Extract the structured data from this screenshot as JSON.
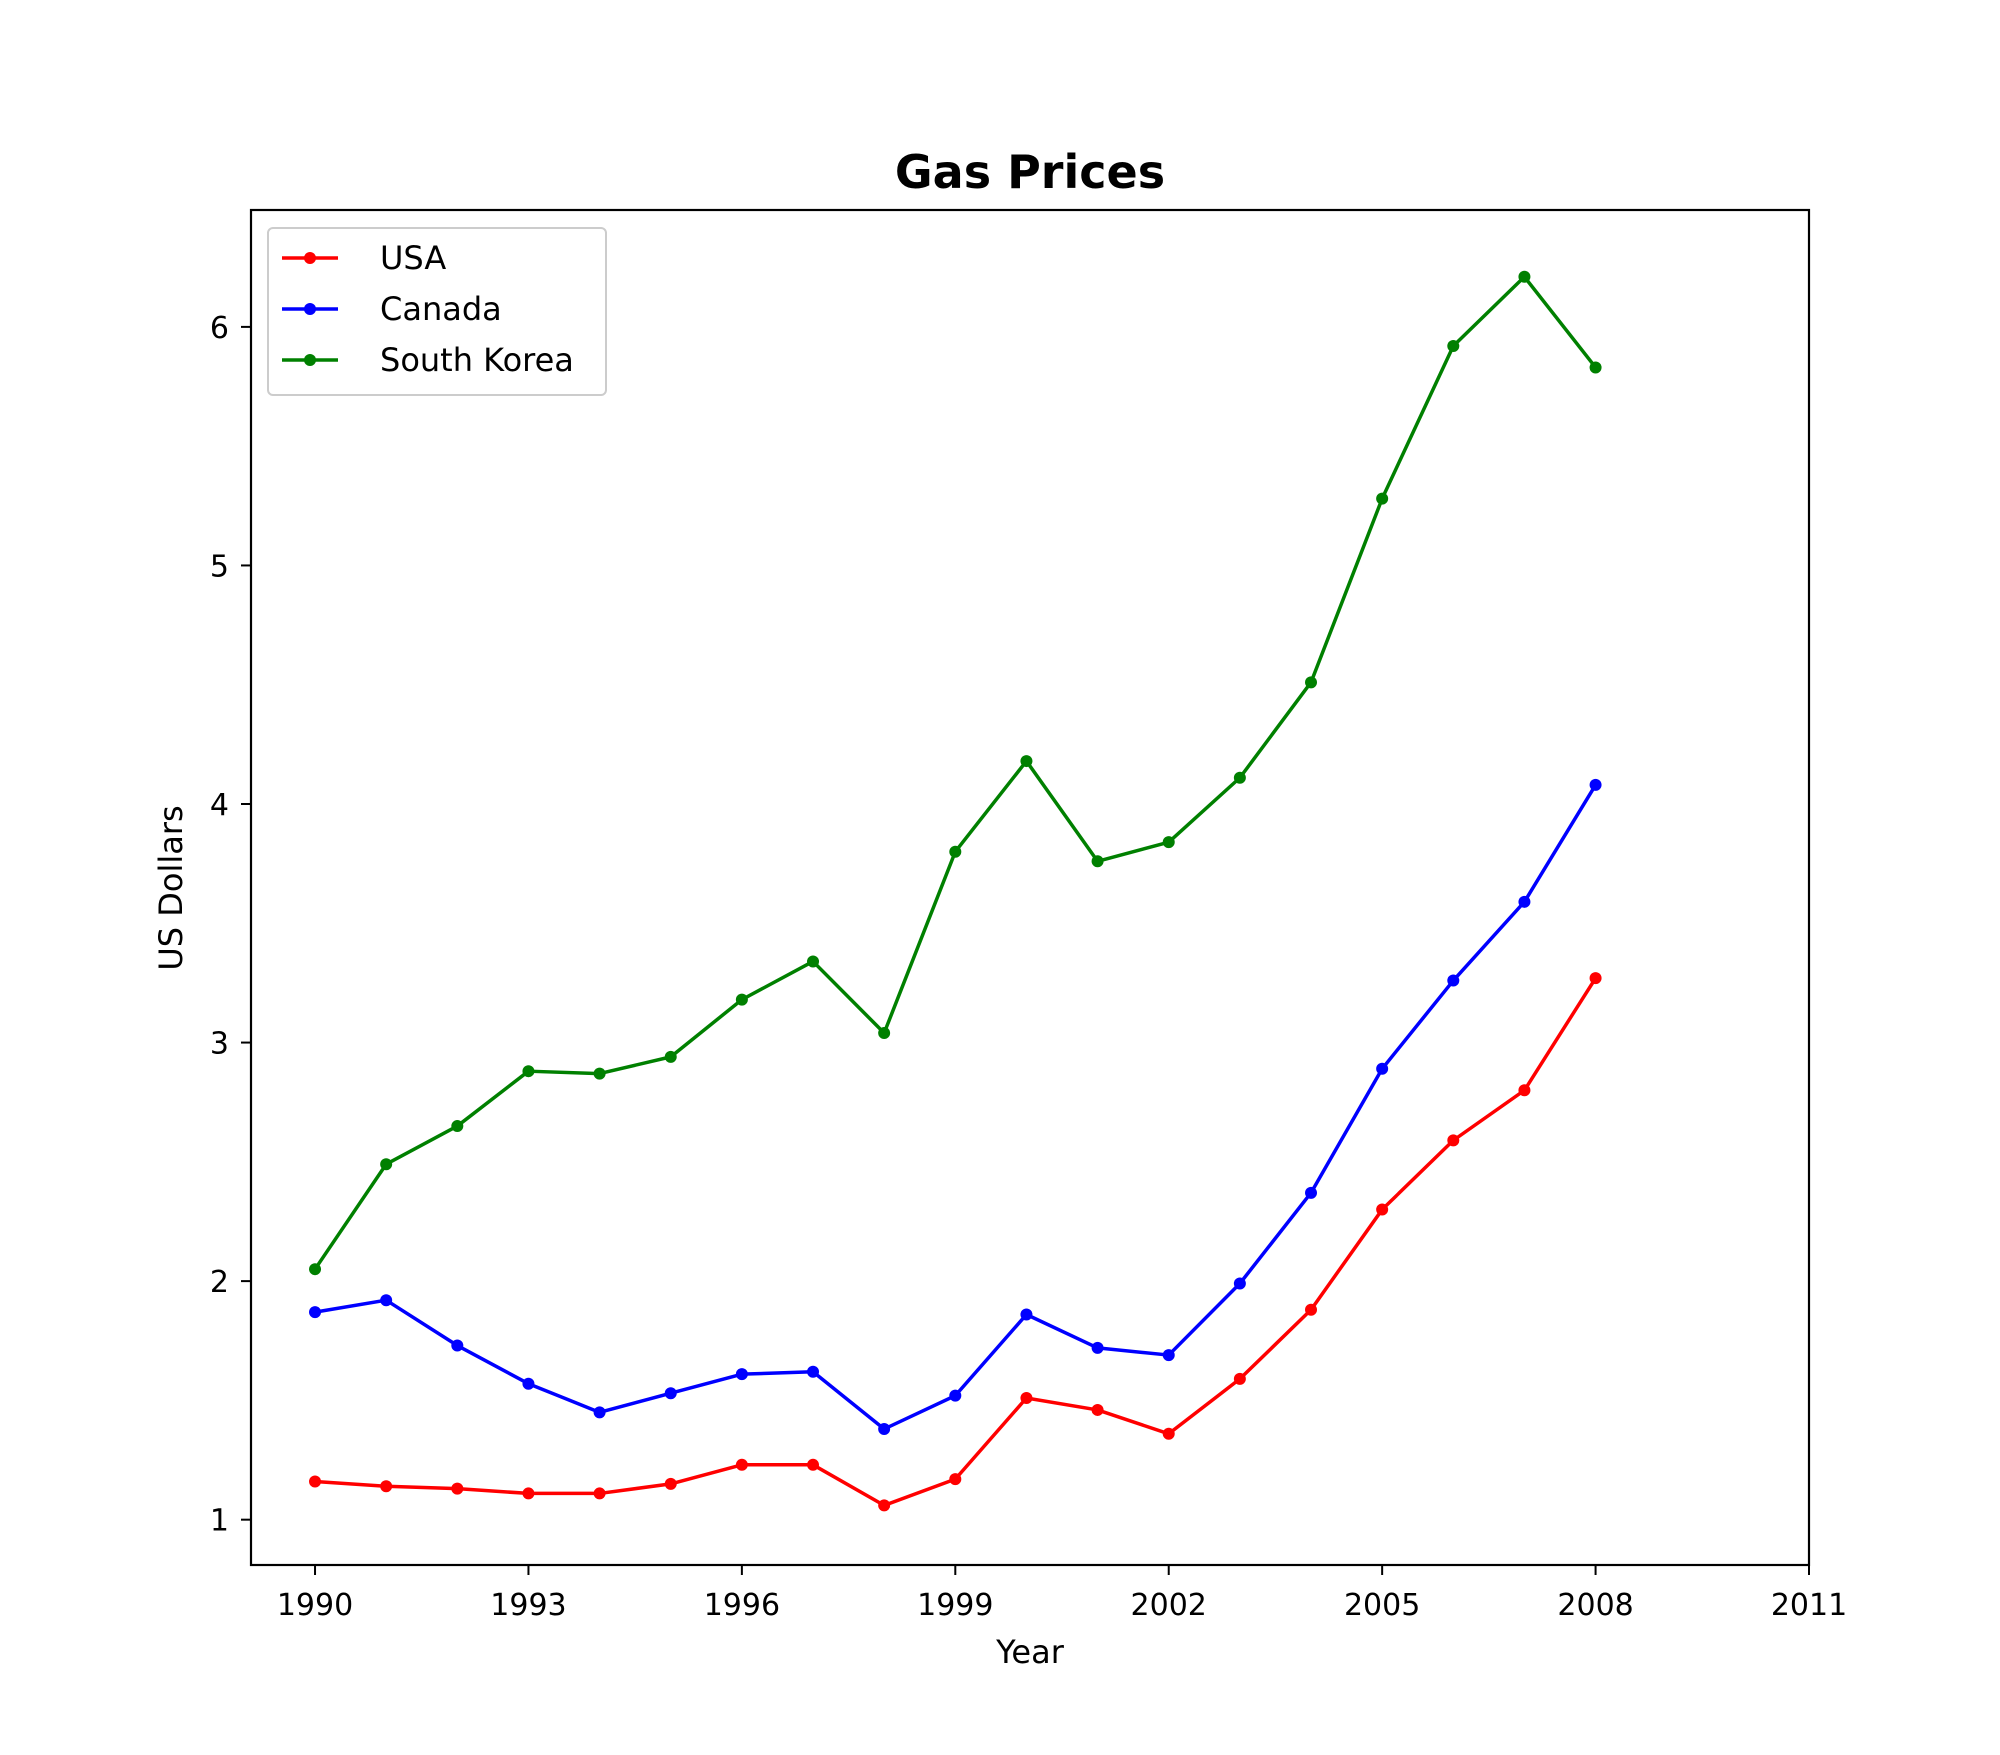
{
  "chart_data": {
    "type": "line",
    "title": "Gas Prices",
    "xlabel": "Year",
    "ylabel": "US Dollars",
    "x": [
      1990,
      1991,
      1992,
      1993,
      1994,
      1995,
      1996,
      1997,
      1998,
      1999,
      2000,
      2001,
      2002,
      2003,
      2004,
      2005,
      2006,
      2007,
      2008
    ],
    "xlim": [
      1989.1,
      2011.0
    ],
    "ylim": [
      0.81,
      6.49
    ],
    "xticks": [
      "1990",
      "1993",
      "1996",
      "1999",
      "2002",
      "2005",
      "2008",
      "2011"
    ],
    "xtick_values": [
      1990,
      1993,
      1996,
      1999,
      2002,
      2005,
      2008,
      2011
    ],
    "yticks": [
      "1",
      "2",
      "3",
      "4",
      "5",
      "6"
    ],
    "ytick_values": [
      1,
      2,
      3,
      4,
      5,
      6
    ],
    "grid": false,
    "legend_position": "upper left",
    "series": [
      {
        "name": "USA",
        "color": "#ff0000",
        "values": [
          1.16,
          1.14,
          1.13,
          1.11,
          1.11,
          1.15,
          1.23,
          1.23,
          1.06,
          1.17,
          1.51,
          1.46,
          1.36,
          1.59,
          1.88,
          2.3,
          2.59,
          2.8,
          3.27
        ]
      },
      {
        "name": "Canada",
        "color": "#0000ff",
        "values": [
          1.87,
          1.92,
          1.73,
          1.57,
          1.45,
          1.53,
          1.61,
          1.62,
          1.38,
          1.52,
          1.86,
          1.72,
          1.69,
          1.99,
          2.37,
          2.89,
          3.26,
          3.59,
          4.08
        ]
      },
      {
        "name": "South Korea",
        "color": "#008000",
        "values": [
          2.05,
          2.49,
          2.65,
          2.88,
          2.87,
          2.94,
          3.18,
          3.34,
          3.04,
          3.8,
          4.18,
          3.76,
          3.84,
          4.11,
          4.51,
          5.28,
          5.92,
          6.21,
          5.83
        ]
      }
    ]
  }
}
